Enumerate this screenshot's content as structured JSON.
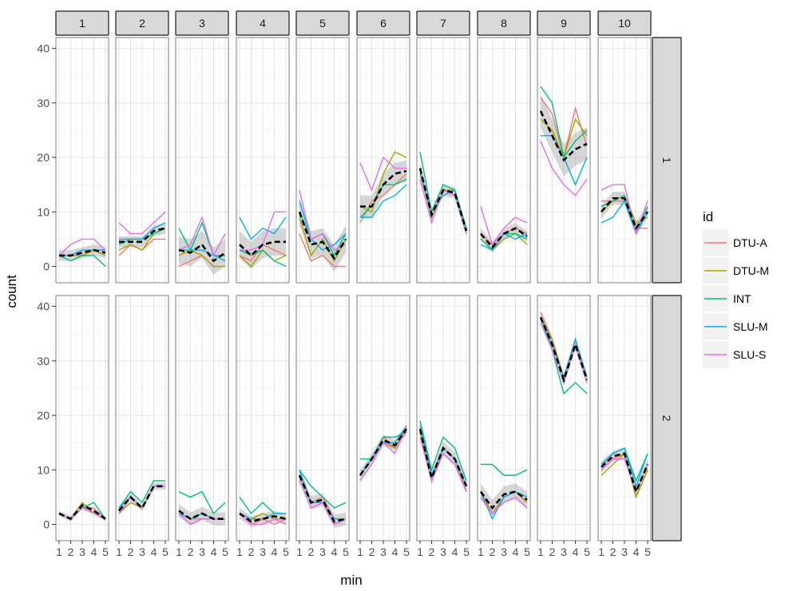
{
  "chart_data": {
    "type": "line",
    "xlabel": "min",
    "ylabel": "count",
    "x": [
      1,
      2,
      3,
      4,
      5
    ],
    "x_ticks": [
      "1",
      "2",
      "3",
      "4",
      "5"
    ],
    "ylim": [
      -3,
      42
    ],
    "y_ticks": [
      "0",
      "10",
      "20",
      "30",
      "40"
    ],
    "grid": true,
    "col_facets": [
      "1",
      "2",
      "3",
      "4",
      "5",
      "6",
      "7",
      "8",
      "9",
      "10"
    ],
    "row_facets": [
      "1",
      "2"
    ],
    "legend": {
      "title": "id",
      "position": "right"
    },
    "series_names": [
      "DTU-A",
      "DTU-M",
      "INT",
      "SLU-M",
      "SLU-S"
    ],
    "series_colors": [
      "#F8766D",
      "#A3A500",
      "#00BF7D",
      "#00B0F6",
      "#E76BF3"
    ],
    "mean_style": {
      "color": "#000000",
      "dash": "dashed",
      "band_color": "#999999"
    },
    "panels": [
      [
        {
          "series": [
            [
              2,
              2,
              2,
              3,
              3
            ],
            [
              2,
              2,
              2,
              3,
              2
            ],
            [
              2,
              1,
              2,
              2,
              0
            ],
            [
              2,
              2,
              3,
              3,
              3
            ],
            [
              2,
              4,
              5,
              5,
              3
            ]
          ],
          "mean": [
            2,
            2,
            2.5,
            3,
            2.5
          ],
          "band": [
            1
          ]
        },
        {
          "series": [
            [
              2,
              4,
              3,
              5,
              5
            ],
            [
              3,
              4,
              3,
              6,
              7
            ],
            [
              4,
              5,
              5,
              6,
              7
            ],
            [
              5,
              5,
              5,
              7,
              8
            ],
            [
              8,
              6,
              6,
              8,
              10
            ]
          ],
          "mean": [
            4.5,
            4.5,
            4.5,
            6.5,
            7
          ],
          "band": [
            1
          ]
        },
        {
          "series": [
            [
              0,
              1,
              2,
              0,
              0
            ],
            [
              2,
              3,
              2,
              0,
              0
            ],
            [
              7,
              3,
              8,
              2,
              2
            ],
            [
              3,
              3,
              3,
              2,
              1
            ],
            [
              3,
              4,
              9,
              2,
              6
            ]
          ],
          "mean": [
            3,
            2.5,
            4,
            1,
            2.5
          ],
          "band": [
            2.5
          ]
        },
        {
          "series": [
            [
              2,
              1,
              4,
              3,
              2
            ],
            [
              2,
              0,
              3,
              1,
              2
            ],
            [
              3,
              2,
              3,
              1,
              0
            ],
            [
              9,
              5,
              7,
              6,
              9
            ],
            [
              3,
              3,
              4,
              10,
              10
            ]
          ],
          "mean": [
            4,
            2,
            4,
            4.5,
            4.5
          ],
          "band": [
            2.5
          ]
        },
        {
          "series": [
            [
              6,
              1,
              2,
              0,
              0
            ],
            [
              9,
              2,
              5,
              1,
              5
            ],
            [
              10,
              5,
              6,
              2,
              6
            ],
            [
              12,
              5,
              3,
              4,
              6
            ],
            [
              14,
              5,
              6,
              3,
              4
            ]
          ],
          "mean": [
            10,
            4,
            4.5,
            1.5,
            5
          ],
          "band": [
            2.5
          ]
        },
        {
          "series": [
            [
              8,
              12,
              13,
              15,
              17
            ],
            [
              11,
              10,
              17,
              21,
              20
            ],
            [
              9,
              11,
              15,
              15,
              16
            ],
            [
              9,
              9,
              12,
              13,
              15
            ],
            [
              19,
              14,
              20,
              18,
              18
            ]
          ],
          "mean": [
            11,
            11,
            15,
            17,
            17.5
          ],
          "band": [
            2
          ]
        },
        {
          "series": [
            [
              17,
              9,
              14,
              13,
              6
            ],
            [
              18,
              9,
              14,
              14,
              7
            ],
            [
              21,
              10,
              15,
              14,
              7
            ],
            [
              17,
              10,
              13,
              14,
              6
            ],
            [
              16,
              8,
              14,
              13,
              6
            ]
          ],
          "mean": [
            18,
            9.5,
            14,
            13.5,
            6.5
          ],
          "band": [
            1
          ]
        },
        {
          "series": [
            [
              6,
              4,
              6,
              7,
              6
            ],
            [
              5,
              3,
              5,
              6,
              4
            ],
            [
              5,
              3,
              6,
              6,
              5
            ],
            [
              4,
              3,
              6,
              5,
              6
            ],
            [
              11,
              4,
              7,
              9,
              8
            ]
          ],
          "mean": [
            6,
            3.5,
            6,
            7,
            5.5
          ],
          "band": [
            1
          ]
        },
        {
          "series": [
            [
              31,
              28,
              20,
              29,
              22
            ],
            [
              27,
              25,
              20,
              27,
              24
            ],
            [
              33,
              30,
              20,
              23,
              25
            ],
            [
              24,
              24,
              20,
              15,
              20
            ],
            [
              23,
              18,
              15,
              13,
              16
            ]
          ],
          "mean": [
            28.5,
            24,
            19.5,
            21.5,
            22.5
          ],
          "band": [
            3
          ]
        },
        {
          "series": [
            [
              12,
              12,
              12,
              7,
              7
            ],
            [
              10,
              12,
              13,
              8,
              9
            ],
            [
              11,
              12,
              13,
              6,
              11
            ],
            [
              8,
              9,
              12,
              6,
              10
            ],
            [
              14,
              15,
              15,
              6,
              12
            ]
          ],
          "mean": [
            10,
            12.5,
            12.5,
            7,
            10
          ],
          "band": [
            1.2
          ]
        }
      ],
      [
        {
          "series": [
            [
              2,
              1,
              3,
              3,
              1
            ],
            [
              2,
              1,
              4,
              2,
              1
            ],
            [
              2,
              1,
              3,
              4,
              1
            ],
            [
              2,
              1,
              3,
              2,
              1
            ],
            [
              2,
              1,
              3,
              2,
              1
            ]
          ],
          "mean": [
            2,
            1,
            3.5,
            2.5,
            1
          ],
          "band": [
            0.5
          ]
        },
        {
          "series": [
            [
              2,
              4,
              3,
              7,
              7
            ],
            [
              2,
              4,
              3,
              7,
              7
            ],
            [
              3,
              6,
              4,
              8,
              8
            ],
            [
              3,
              5,
              3,
              7,
              7
            ],
            [
              2,
              5,
              3,
              7,
              7
            ]
          ],
          "mean": [
            2.5,
            5,
            3,
            7,
            7
          ],
          "band": [
            0.6
          ]
        },
        {
          "series": [
            [
              2,
              1,
              1,
              1,
              1
            ],
            [
              2,
              1,
              2,
              1,
              1
            ],
            [
              6,
              5,
              6,
              2,
              4
            ],
            [
              2,
              1,
              2,
              1,
              1
            ],
            [
              2,
              0,
              1,
              1,
              1
            ]
          ],
          "mean": [
            2.5,
            1,
            2,
            1,
            1
          ],
          "band": [
            1.2
          ]
        },
        {
          "series": [
            [
              2,
              0,
              1,
              0,
              1
            ],
            [
              2,
              1,
              2,
              1,
              1
            ],
            [
              5,
              2,
              4,
              2,
              2
            ],
            [
              2,
              1,
              1,
              2,
              2
            ],
            [
              2,
              0,
              0,
              1,
              0
            ]
          ],
          "mean": [
            2,
            0.5,
            1,
            1.5,
            1
          ],
          "band": [
            1
          ]
        },
        {
          "series": [
            [
              9,
              4,
              5,
              1,
              1
            ],
            [
              9,
              4,
              4,
              0,
              1
            ],
            [
              10,
              7,
              5,
              3,
              4
            ],
            [
              10,
              4,
              4,
              1,
              1
            ],
            [
              8,
              3,
              4,
              0,
              1
            ]
          ],
          "mean": [
            9,
            4,
            4.5,
            0.5,
            1
          ],
          "band": [
            1.2
          ]
        },
        {
          "series": [
            [
              9,
              12,
              16,
              14,
              17
            ],
            [
              9,
              12,
              15,
              14,
              18
            ],
            [
              12,
              12,
              16,
              16,
              17
            ],
            [
              9,
              12,
              15,
              15,
              18
            ],
            [
              8,
              11,
              15,
              13,
              18
            ]
          ],
          "mean": [
            9,
            12,
            15.5,
            14.5,
            17.5
          ],
          "band": [
            1
          ]
        },
        {
          "series": [
            [
              17,
              8,
              14,
              12,
              6
            ],
            [
              17,
              9,
              13,
              11,
              6
            ],
            [
              19,
              10,
              16,
              14,
              8
            ],
            [
              18,
              9,
              14,
              12,
              7
            ],
            [
              16,
              8,
              13,
              11,
              6
            ]
          ],
          "mean": [
            17.5,
            8.5,
            14,
            12,
            7
          ],
          "band": [
            1.2
          ]
        },
        {
          "series": [
            [
              6,
              2,
              5,
              6,
              4
            ],
            [
              6,
              2,
              5,
              6,
              4
            ],
            [
              11,
              11,
              9,
              9,
              10
            ],
            [
              6,
              1,
              5,
              6,
              5
            ],
            [
              5,
              2,
              4,
              5,
              3
            ]
          ],
          "mean": [
            6,
            3,
            5.5,
            6,
            4.5
          ],
          "band": [
            1.5
          ]
        },
        {
          "series": [
            [
              39,
              34,
              27,
              34,
              27
            ],
            [
              38,
              34,
              27,
              33,
              27
            ],
            [
              38,
              32,
              24,
              26,
              24
            ],
            [
              38,
              33,
              27,
              34,
              27
            ],
            [
              37,
              32,
              26,
              33,
              26
            ]
          ],
          "mean": [
            38,
            33,
            26.5,
            33,
            26.5
          ],
          "band": [
            1
          ]
        },
        {
          "series": [
            [
              11,
              12,
              13,
              5,
              10
            ],
            [
              9,
              11,
              13,
              5,
              10
            ],
            [
              11,
              13,
              14,
              8,
              13
            ],
            [
              11,
              13,
              14,
              7,
              13
            ],
            [
              10,
              12,
              12,
              6,
              11
            ]
          ],
          "mean": [
            10.5,
            12.5,
            13,
            6,
            11
          ],
          "band": [
            1
          ]
        }
      ]
    ]
  }
}
